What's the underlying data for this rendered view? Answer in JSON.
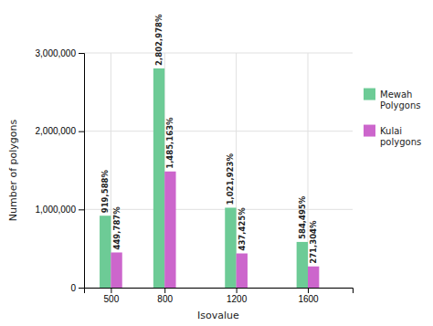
{
  "chart_data": {
    "type": "bar",
    "x": [
      500,
      800,
      1200,
      1600
    ],
    "series": [
      {
        "name": "Mewah\nPolygons",
        "color": "#6DCB96",
        "values": [
          919588,
          2802978,
          1021923,
          584495
        ],
        "value_labels": [
          "919,588%",
          "2,802,978%",
          "1,021,923%",
          "584,495%"
        ]
      },
      {
        "name": "Kulai\npolygons",
        "color": "#CC66CC",
        "values": [
          449787,
          1485163,
          437425,
          271304
        ],
        "value_labels": [
          "449,787%",
          "1,485,163%",
          "437,425%",
          "271,304%"
        ]
      }
    ],
    "xlabel": "Isovalue",
    "ylabel": "Number of polygons",
    "xlim": [
      350,
      1850
    ],
    "xticks": [
      500,
      800,
      1200,
      1600
    ],
    "ylim": [
      0,
      3000000
    ],
    "yticks": [
      0,
      {
        "value": 1000000,
        "label": "1,000,000"
      },
      {
        "value": 2000000,
        "label": "2,000,000"
      },
      {
        "value": 3000000,
        "label": "3,000,000"
      }
    ],
    "grid": true,
    "legend": "right",
    "data_labels": true
  }
}
